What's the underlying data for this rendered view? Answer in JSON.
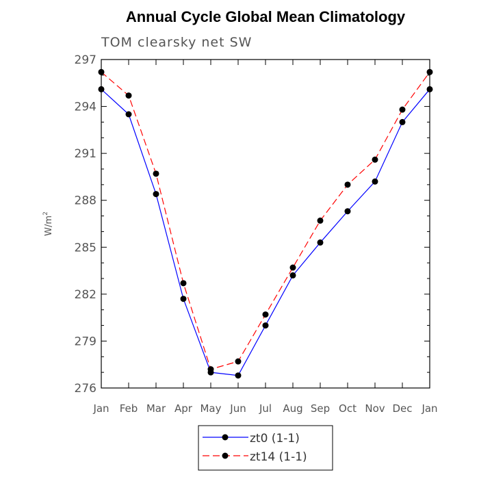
{
  "chart_data": {
    "type": "line",
    "title": "Annual Cycle Global Mean Climatology",
    "subtitle": "TOM clearsky net SW",
    "ylabel": "W/m",
    "ylabel_sup": "2",
    "xlabel": "",
    "categories": [
      "Jan",
      "Feb",
      "Mar",
      "Apr",
      "May",
      "Jun",
      "Jul",
      "Aug",
      "Sep",
      "Oct",
      "Nov",
      "Dec",
      "Jan"
    ],
    "ylim": [
      276,
      297
    ],
    "yticks": [
      276,
      279,
      282,
      285,
      288,
      291,
      294,
      297
    ],
    "y_minor_step": 1,
    "grid": false,
    "legend_position": "bottom",
    "series": [
      {
        "name": "zt0 (1-1)",
        "color": "#0000ff",
        "dash": "solid",
        "marker": "filled-circle",
        "values": [
          295.1,
          293.5,
          288.4,
          281.7,
          277.0,
          276.8,
          280.0,
          283.2,
          285.3,
          287.3,
          289.2,
          293.0,
          295.1
        ]
      },
      {
        "name": "zt14 (1-1)",
        "color": "#ff0000",
        "dash": "dashed",
        "marker": "filled-circle",
        "values": [
          296.2,
          294.7,
          289.7,
          282.7,
          277.2,
          277.7,
          280.7,
          283.7,
          286.7,
          289.0,
          290.6,
          293.8,
          296.2
        ]
      }
    ]
  }
}
